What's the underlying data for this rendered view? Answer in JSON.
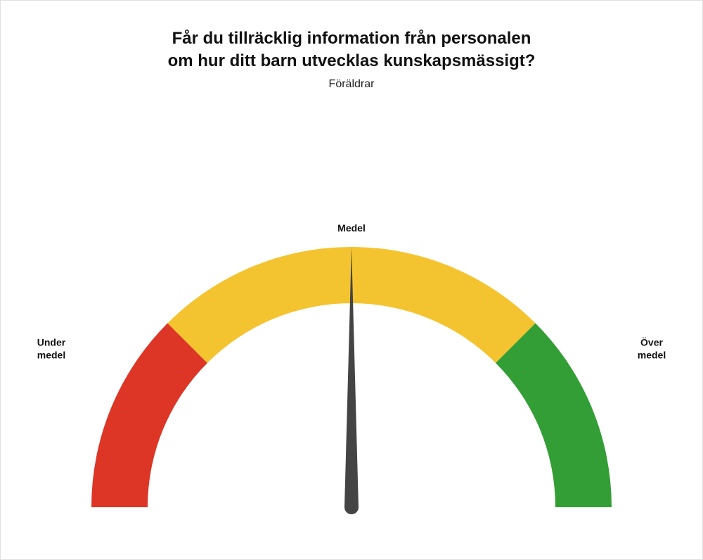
{
  "title_line1": "Får du tillräcklig information från personalen",
  "title_line2": "om hur ditt barn utvecklas kunskapsmässigt?",
  "subtitle": "Föräldrar",
  "gauge": {
    "type": "gauge",
    "min": 0,
    "max": 1,
    "needle_value": 0.5,
    "segments": [
      {
        "from": 0.0,
        "to": 0.25,
        "color": "#dd3526"
      },
      {
        "from": 0.25,
        "to": 0.75,
        "color": "#f4c430"
      },
      {
        "from": 0.75,
        "to": 1.0,
        "color": "#339e35"
      }
    ],
    "outer_radius": 370,
    "inner_radius": 290,
    "needle_color": "#444444",
    "needle_base_halfwidth": 10,
    "needle_length": 370,
    "background_color": "#ffffff",
    "labels": {
      "left": {
        "line1": "Under",
        "line2": "medel"
      },
      "center": {
        "text": "Medel"
      },
      "right": {
        "line1": "Över",
        "line2": "medel"
      }
    },
    "label_fontsize": 14,
    "label_fontweight": 700,
    "title_fontsize": 24,
    "subtitle_fontsize": 16
  }
}
